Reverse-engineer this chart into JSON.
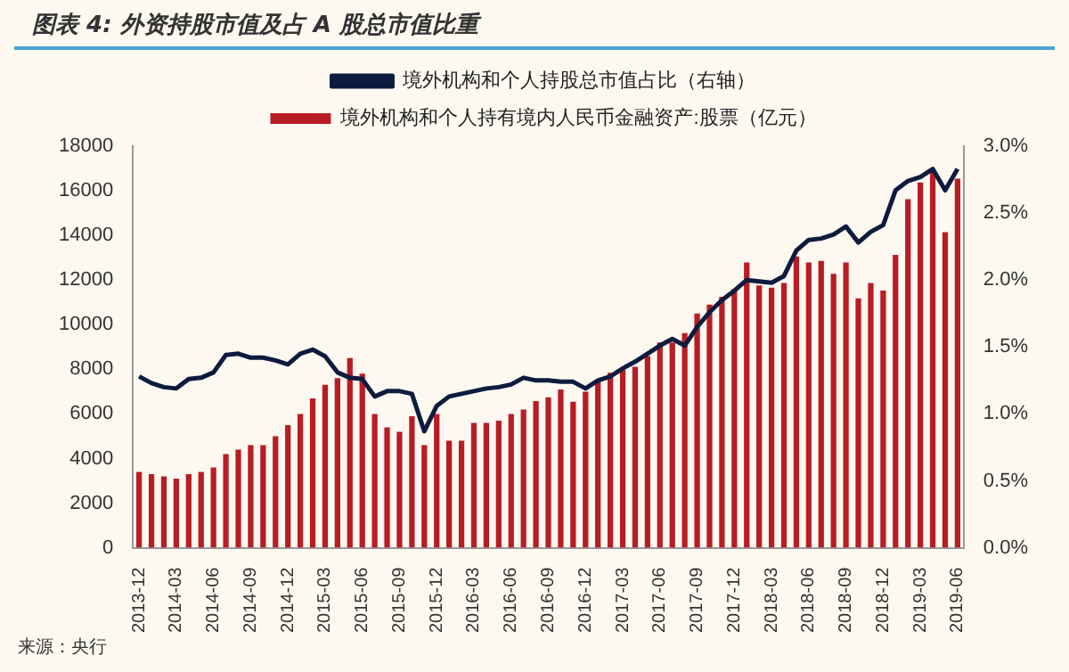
{
  "chart_data": {
    "type": "bar",
    "title": "图表 4:  外资持股市值及占 A 股总市值比重",
    "categories": [
      "2013-12",
      null,
      null,
      "2014-03",
      null,
      null,
      "2014-06",
      null,
      null,
      "2014-09",
      null,
      null,
      "2014-12",
      null,
      null,
      "2015-03",
      null,
      null,
      "2015-06",
      null,
      null,
      "2015-09",
      null,
      null,
      "2015-12",
      null,
      null,
      "2016-03",
      null,
      null,
      "2016-06",
      null,
      null,
      "2016-09",
      null,
      null,
      "2016-12",
      null,
      null,
      "2017-03",
      null,
      null,
      "2017-06",
      null,
      null,
      "2017-09",
      null,
      null,
      "2017-12",
      null,
      null,
      "2018-03",
      null,
      null,
      "2018-06",
      null,
      null,
      "2018-09",
      null,
      null,
      "2018-12",
      null,
      null,
      "2019-03",
      null,
      null,
      "2019-06"
    ],
    "series": [
      {
        "name": "境外机构和个人持有境内人民币金融资产:股票（亿元）",
        "color": "#b81d24",
        "values": [
          3400,
          3300,
          3200,
          3100,
          3300,
          3400,
          3600,
          4200,
          4400,
          4600,
          4600,
          5000,
          5500,
          6000,
          6700,
          7300,
          7600,
          8500,
          7800,
          6000,
          5400,
          5200,
          5900,
          4600,
          6000,
          4800,
          4800,
          5600,
          5600,
          5700,
          6000,
          6200,
          6580,
          6750,
          7090,
          6550,
          6990,
          7500,
          7840,
          7980,
          8110,
          8590,
          9200,
          9200,
          9620,
          10500,
          10900,
          11250,
          11600,
          12790,
          11760,
          11660,
          11870,
          13060,
          12790,
          12860,
          12280,
          12790,
          11180,
          11870,
          11530,
          13130,
          15620,
          16370,
          16880,
          14150,
          16540
        ]
      },
      {
        "name": "境外机构和个人持股总市值占比（右轴）",
        "type": "line",
        "axis": "y2",
        "color": "#0d1b3e",
        "values": [
          1.28,
          1.23,
          1.2,
          1.19,
          1.26,
          1.27,
          1.31,
          1.44,
          1.45,
          1.42,
          1.42,
          1.4,
          1.37,
          1.45,
          1.48,
          1.43,
          1.31,
          1.27,
          1.26,
          1.13,
          1.17,
          1.17,
          1.15,
          0.87,
          1.06,
          1.13,
          1.15,
          1.17,
          1.19,
          1.2,
          1.22,
          1.27,
          1.25,
          1.25,
          1.24,
          1.24,
          1.19,
          1.25,
          1.28,
          1.34,
          1.39,
          1.45,
          1.51,
          1.56,
          1.51,
          1.65,
          1.76,
          1.85,
          1.92,
          2.0,
          1.99,
          1.98,
          2.03,
          2.22,
          2.3,
          2.31,
          2.34,
          2.4,
          2.28,
          2.36,
          2.41,
          2.67,
          2.74,
          2.77,
          2.83,
          2.67,
          2.83
        ]
      }
    ],
    "ylim": [
      0,
      18000
    ],
    "yticks": [
      0,
      2000,
      4000,
      6000,
      8000,
      10000,
      12000,
      14000,
      16000,
      18000
    ],
    "y2lim": [
      0,
      3
    ],
    "y2ticks": [
      {
        "value": 0,
        "label": "0.0%"
      },
      {
        "value": 0.5,
        "label": "0.5%"
      },
      {
        "value": 1,
        "label": "1.0%"
      },
      {
        "value": 1.5,
        "label": "1.5%"
      },
      {
        "value": 2,
        "label": "2.0%"
      },
      {
        "value": 2.5,
        "label": "2.5%"
      },
      {
        "value": 3,
        "label": "3.0%"
      }
    ],
    "grid": false,
    "legend": "top",
    "marker": "none",
    "annotations": [
      "来源：央行"
    ]
  }
}
